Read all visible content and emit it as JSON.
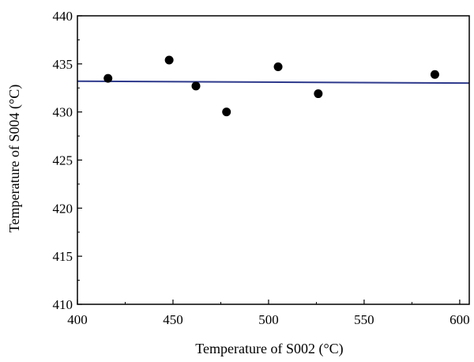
{
  "chart_data": {
    "type": "scatter",
    "title": "",
    "xlabel": "Temperature of S002 (°C)",
    "ylabel": "Temperature of S004 (°C)",
    "xlim": [
      400,
      605
    ],
    "ylim": [
      410,
      440
    ],
    "xticks": [
      400,
      450,
      500,
      550,
      600
    ],
    "yticks": [
      410,
      415,
      420,
      425,
      430,
      435,
      440
    ],
    "grid": false,
    "legend": "none",
    "points": [
      {
        "x": 416,
        "y": 433.5
      },
      {
        "x": 448,
        "y": 435.4
      },
      {
        "x": 462,
        "y": 432.7
      },
      {
        "x": 478,
        "y": 430.0
      },
      {
        "x": 505,
        "y": 434.7
      },
      {
        "x": 526,
        "y": 431.9
      },
      {
        "x": 587,
        "y": 433.9
      }
    ],
    "fit_line": {
      "x": [
        400,
        605
      ],
      "y": [
        433.2,
        433.0
      ]
    },
    "colors": {
      "points": "#000000",
      "fit_line": "#2e3a8c",
      "axes": "#000000"
    }
  }
}
